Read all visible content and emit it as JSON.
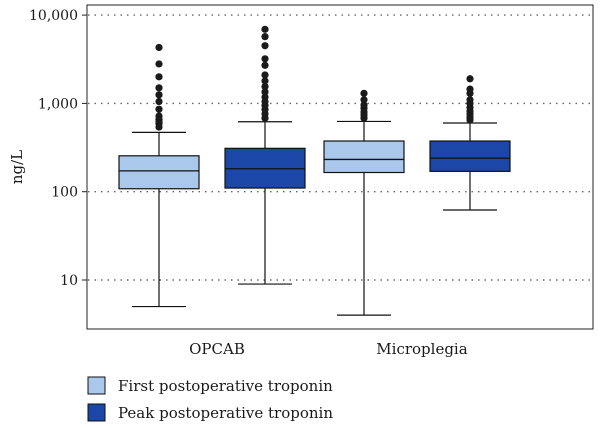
{
  "chart_data": {
    "type": "boxplot",
    "ylabel": "ng/L",
    "yscale": "log",
    "ylim": [
      3,
      10000
    ],
    "yticks": [
      10,
      100,
      1000,
      10000
    ],
    "ytick_labels": [
      "10",
      "100",
      "1,000",
      "10,000"
    ],
    "grid": "horizontal dotted at major ticks",
    "legend_position": "bottom-left",
    "categories": [
      "OPCAB",
      "Microplegia"
    ],
    "series": [
      {
        "name": "First postoperative troponin",
        "color": "#aac8ec",
        "boxes": [
          {
            "category": "OPCAB",
            "whisker_low": 5,
            "q1": 108,
            "median": 172,
            "q3": 255,
            "whisker_high": 470,
            "outliers": [
              540,
              590,
              630,
              660,
              720,
              860,
              1050,
              1250,
              1500,
              2000,
              2800,
              4300
            ]
          },
          {
            "category": "Microplegia",
            "whisker_low": 4,
            "q1": 165,
            "median": 232,
            "q3": 375,
            "whisker_high": 625,
            "outliers": [
              680,
              740,
              800,
              880,
              960,
              1100,
              1300
            ]
          }
        ]
      },
      {
        "name": "Peak postoperative troponin",
        "color": "#1a47a8",
        "boxes": [
          {
            "category": "OPCAB",
            "whisker_low": 9,
            "q1": 110,
            "median": 182,
            "q3": 310,
            "whisker_high": 620,
            "outliers": [
              680,
              760,
              850,
              950,
              1050,
              1180,
              1350,
              1550,
              1800,
              2100,
              2700,
              3200,
              4500,
              5700,
              6900
            ]
          },
          {
            "category": "Microplegia",
            "whisker_low": 62,
            "q1": 170,
            "median": 240,
            "q3": 375,
            "whisker_high": 600,
            "outliers": [
              650,
              700,
              760,
              820,
              900,
              1000,
              1100,
              1300,
              1450,
              1900
            ]
          }
        ]
      }
    ]
  }
}
